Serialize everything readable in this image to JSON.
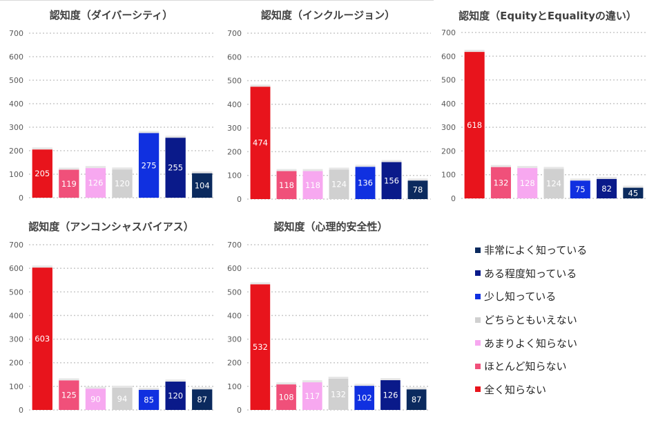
{
  "legend": {
    "items": [
      {
        "label": "非常によく知っている",
        "color": "#0b2a5e"
      },
      {
        "label": "ある程度知っている",
        "color": "#0a1a8a"
      },
      {
        "label": "少し知っている",
        "color": "#1030e0"
      },
      {
        "label": "どちらともいえない",
        "color": "#d0d0d0"
      },
      {
        "label": "あまりよく知らない",
        "color": "#f7a8f0"
      },
      {
        "label": "ほとんど知らない",
        "color": "#f0507a"
      },
      {
        "label": "全く知らない",
        "color": "#e8141c"
      }
    ]
  },
  "chart_data": [
    {
      "type": "bar",
      "title": "認知度（ダイバーシティ）",
      "categories": [
        "全く知らない",
        "ほとんど知らない",
        "あまりよく知らない",
        "どちらともいえない",
        "少し知っている",
        "ある程度知っている",
        "非常によく知っている"
      ],
      "values": [
        205,
        119,
        126,
        120,
        275,
        255,
        104
      ],
      "ylim": [
        0,
        700
      ],
      "yticks": [
        0,
        100,
        200,
        300,
        400,
        500,
        600,
        700
      ]
    },
    {
      "type": "bar",
      "title": "認知度（インクルージョン）",
      "categories": [
        "全く知らない",
        "ほとんど知らない",
        "あまりよく知らない",
        "どちらともいえない",
        "少し知っている",
        "ある程度知っている",
        "非常によく知っている"
      ],
      "values": [
        474,
        118,
        118,
        124,
        136,
        156,
        78
      ],
      "ylim": [
        0,
        700
      ],
      "yticks": [
        0,
        100,
        200,
        300,
        400,
        500,
        600,
        700
      ]
    },
    {
      "type": "bar",
      "title": "認知度（EquityとEqualityの違い）",
      "categories": [
        "全く知らない",
        "ほとんど知らない",
        "あまりよく知らない",
        "どちらともいえない",
        "少し知っている",
        "ある程度知っている",
        "非常によく知っている"
      ],
      "values": [
        618,
        132,
        128,
        124,
        75,
        82,
        45
      ],
      "ylim": [
        0,
        700
      ],
      "yticks": [
        0,
        100,
        200,
        300,
        400,
        500,
        600,
        700
      ]
    },
    {
      "type": "bar",
      "title": "認知度（アンコンシャスバイアス）",
      "categories": [
        "全く知らない",
        "ほとんど知らない",
        "あまりよく知らない",
        "どちらともいえない",
        "少し知っている",
        "ある程度知っている",
        "非常によく知っている"
      ],
      "values": [
        603,
        125,
        90,
        94,
        85,
        120,
        87
      ],
      "ylim": [
        0,
        700
      ],
      "yticks": [
        0,
        100,
        200,
        300,
        400,
        500,
        600,
        700
      ]
    },
    {
      "type": "bar",
      "title": "認知度（心理的安全性）",
      "categories": [
        "全く知らない",
        "ほとんど知らない",
        "あまりよく知らない",
        "どちらともいえない",
        "少し知っている",
        "ある程度知っている",
        "非常によく知っている"
      ],
      "values": [
        532,
        108,
        117,
        132,
        102,
        126,
        87
      ],
      "ylim": [
        0,
        700
      ],
      "yticks": [
        0,
        100,
        200,
        300,
        400,
        500,
        600,
        700
      ]
    }
  ]
}
